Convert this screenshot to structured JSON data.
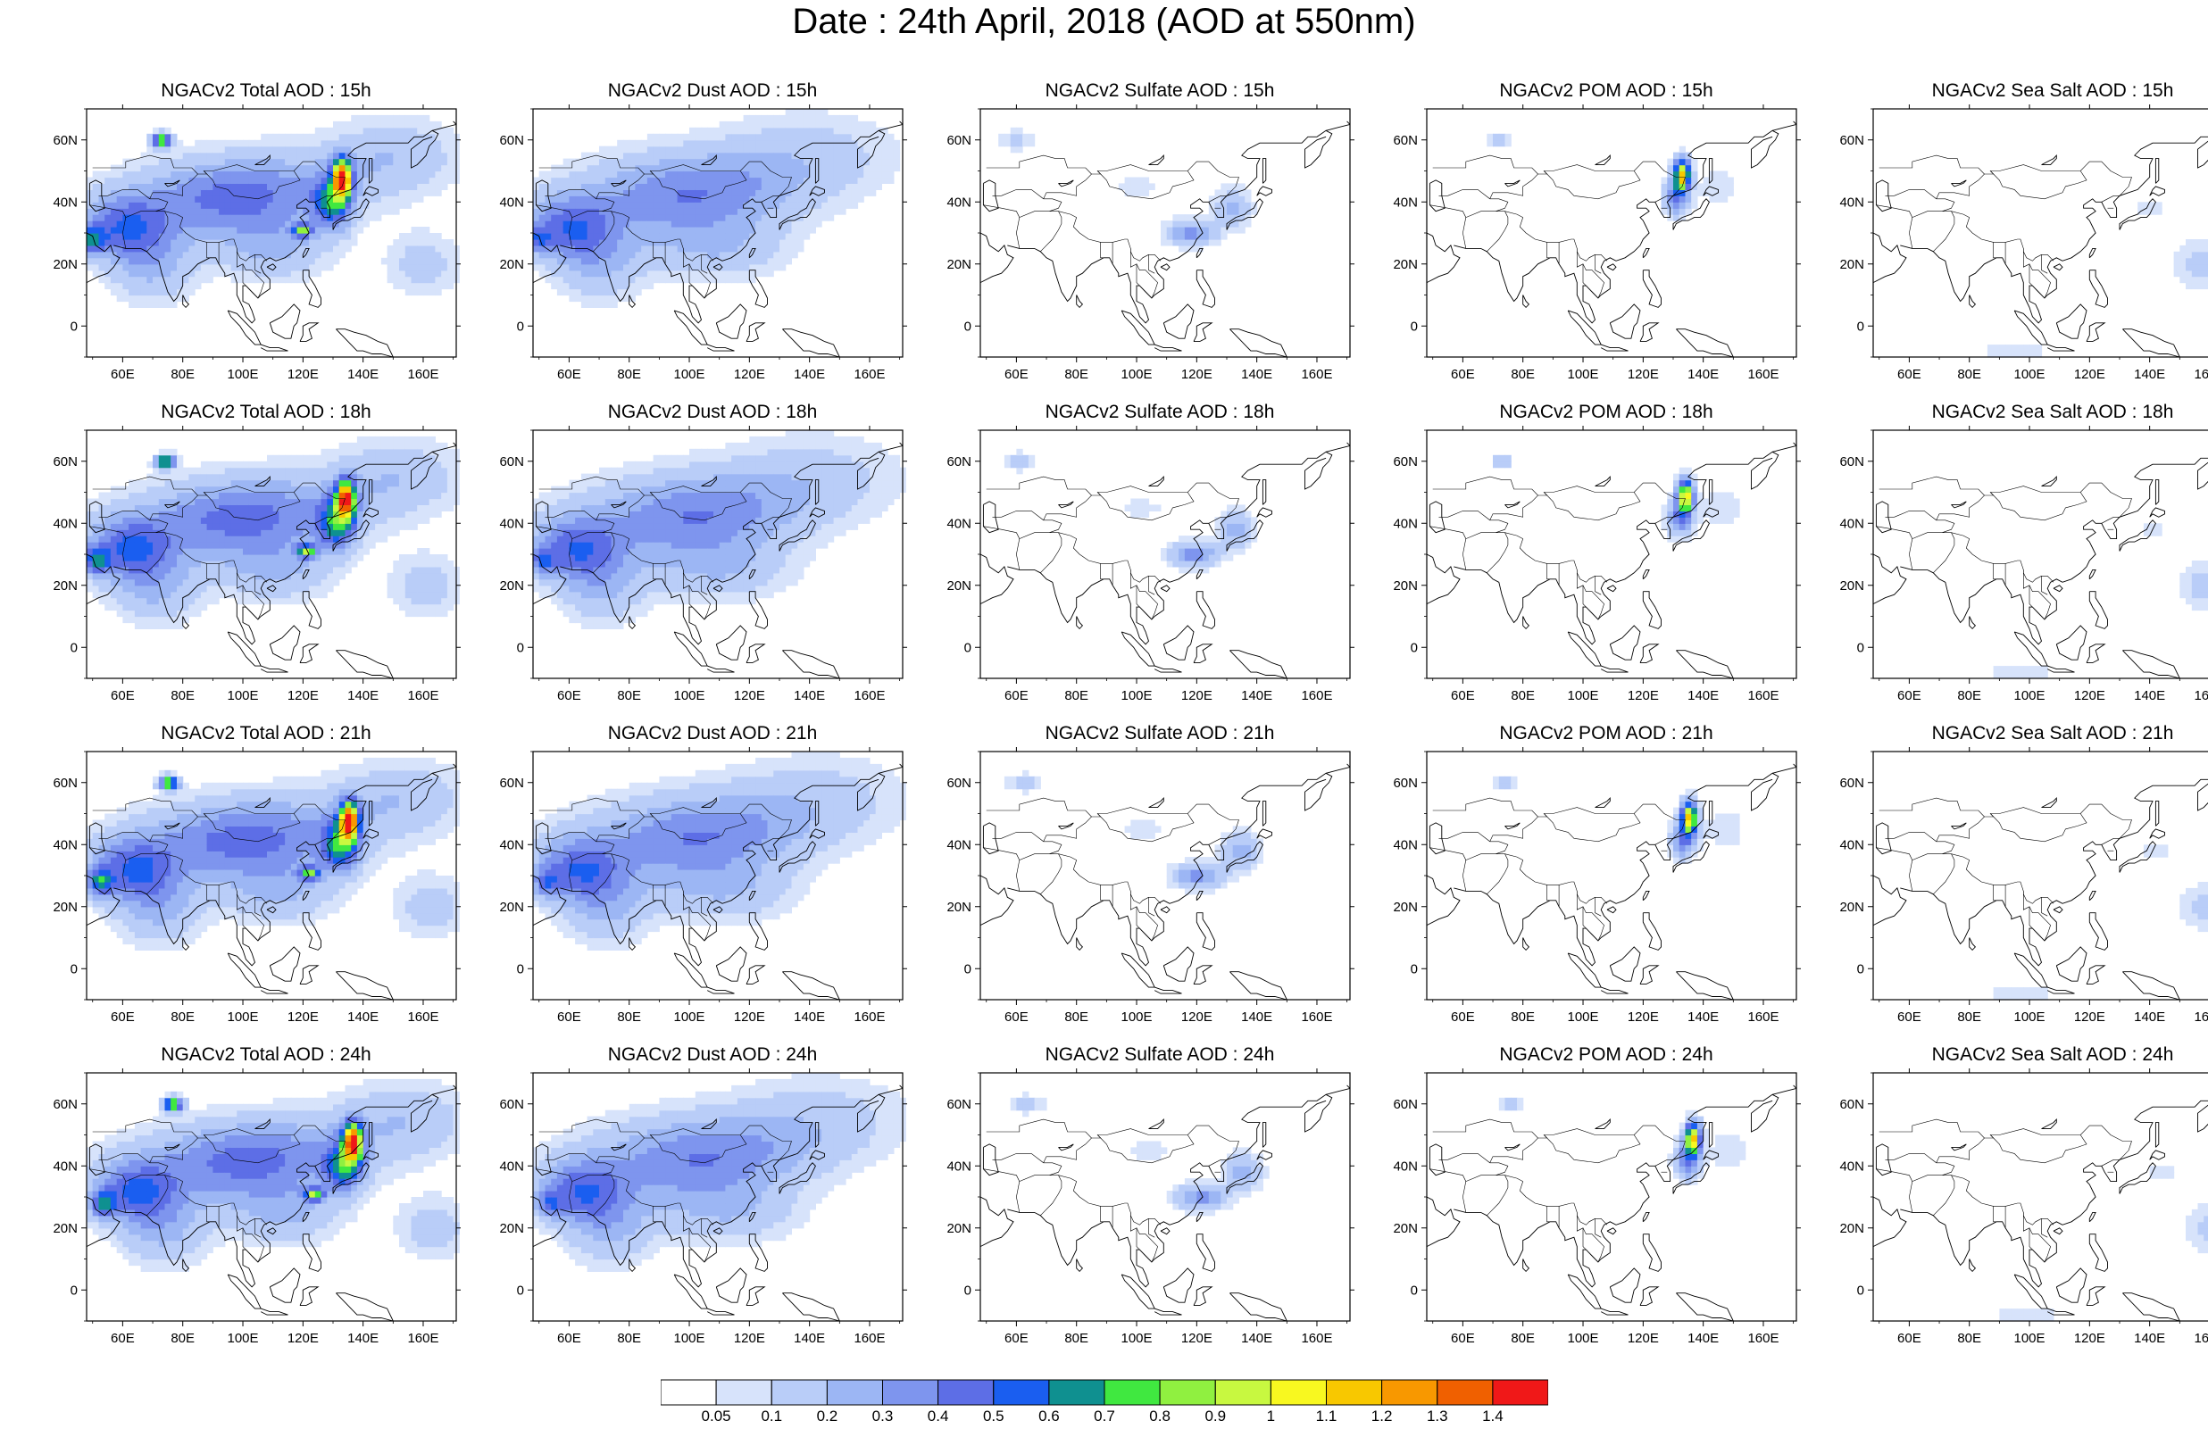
{
  "title": "Date : 24th April, 2018 (AOD at 550nm)",
  "lon_ticks": [
    "60E",
    "80E",
    "100E",
    "120E",
    "140E",
    "160E"
  ],
  "lat_ticks": [
    "0",
    "20N",
    "40N",
    "60N"
  ],
  "panels": [
    [
      {
        "title": "NGACv2 Total AOD : 15h",
        "species": "total",
        "hour": 15
      },
      {
        "title": "NGACv2 Dust AOD : 15h",
        "species": "dust",
        "hour": 15
      },
      {
        "title": "NGACv2 Sulfate AOD : 15h",
        "species": "sulfate",
        "hour": 15
      },
      {
        "title": "NGACv2 POM AOD : 15h",
        "species": "pom",
        "hour": 15
      },
      {
        "title": "NGACv2 Sea Salt AOD : 15h",
        "species": "seasalt",
        "hour": 15
      }
    ],
    [
      {
        "title": "NGACv2 Total AOD : 18h",
        "species": "total",
        "hour": 18
      },
      {
        "title": "NGACv2 Dust AOD : 18h",
        "species": "dust",
        "hour": 18
      },
      {
        "title": "NGACv2 Sulfate AOD : 18h",
        "species": "sulfate",
        "hour": 18
      },
      {
        "title": "NGACv2 POM AOD : 18h",
        "species": "pom",
        "hour": 18
      },
      {
        "title": "NGACv2 Sea Salt AOD : 18h",
        "species": "seasalt",
        "hour": 18
      }
    ],
    [
      {
        "title": "NGACv2 Total AOD : 21h",
        "species": "total",
        "hour": 21
      },
      {
        "title": "NGACv2 Dust AOD : 21h",
        "species": "dust",
        "hour": 21
      },
      {
        "title": "NGACv2 Sulfate AOD : 21h",
        "species": "sulfate",
        "hour": 21
      },
      {
        "title": "NGACv2 POM AOD : 21h",
        "species": "pom",
        "hour": 21
      },
      {
        "title": "NGACv2 Sea Salt AOD : 21h",
        "species": "seasalt",
        "hour": 21
      }
    ],
    [
      {
        "title": "NGACv2 Total AOD : 24h",
        "species": "total",
        "hour": 24
      },
      {
        "title": "NGACv2 Dust AOD : 24h",
        "species": "dust",
        "hour": 24
      },
      {
        "title": "NGACv2 Sulfate AOD : 24h",
        "species": "sulfate",
        "hour": 24
      },
      {
        "title": "NGACv2 POM AOD : 24h",
        "species": "pom",
        "hour": 24
      },
      {
        "title": "NGACv2 Sea Salt  AOD : 24h",
        "species": "seasalt",
        "hour": 24
      }
    ]
  ],
  "colorbar": {
    "labels": [
      "0.05",
      "0.1",
      "0.2",
      "0.3",
      "0.4",
      "0.5",
      "0.6",
      "0.7",
      "0.8",
      "0.9",
      "1",
      "1.1",
      "1.2",
      "1.3",
      "1.4"
    ],
    "colors": [
      "#ffffff",
      "#d7e3fb",
      "#b9cdf8",
      "#9cb6f4",
      "#7e95ee",
      "#5d6ee6",
      "#1a5ef0",
      "#0f9090",
      "#40e840",
      "#90f040",
      "#c8f840",
      "#f8f820",
      "#f8c800",
      "#f89800",
      "#f06000",
      "#f01818"
    ]
  },
  "ocean_color": "#ffffff",
  "coast_color": "#000000"
}
